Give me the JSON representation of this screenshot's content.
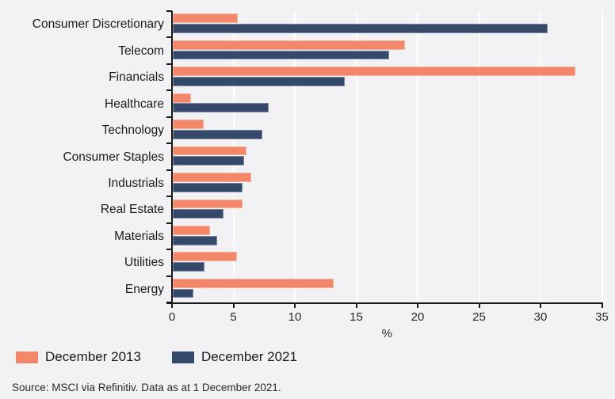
{
  "page": {
    "background": "#f2f2f4"
  },
  "chart_data": {
    "type": "bar",
    "orientation": "horizontal",
    "title": "",
    "categories": [
      "Consumer Discretionary",
      "Telecom",
      "Financials",
      "Healthcare",
      "Technology",
      "Consumer Staples",
      "Industrials",
      "Real Estate",
      "Materials",
      "Utilities",
      "Energy"
    ],
    "series": [
      {
        "name": "December 2013",
        "color": "#f2876a",
        "values": [
          5.3,
          18.9,
          32.8,
          1.5,
          2.5,
          6.0,
          6.4,
          5.7,
          3.0,
          5.2,
          13.1
        ]
      },
      {
        "name": "December 2021",
        "color": "#35496b",
        "values": [
          30.5,
          17.6,
          14.0,
          7.8,
          7.3,
          5.8,
          5.7,
          4.1,
          3.6,
          2.6,
          1.7
        ]
      }
    ],
    "xlabel": "%",
    "xlim": [
      0,
      35
    ],
    "xticks": [
      0,
      5,
      10,
      15,
      20,
      25,
      30,
      35
    ],
    "grid": "vertical-white-lines-at-xticks",
    "legend_position": "bottom-left",
    "axis_color": "#1a1a1a",
    "gridline_color": "#ffffff"
  },
  "source_text": "Source: MSCI via Refinitiv. Data as at 1 December 2021."
}
